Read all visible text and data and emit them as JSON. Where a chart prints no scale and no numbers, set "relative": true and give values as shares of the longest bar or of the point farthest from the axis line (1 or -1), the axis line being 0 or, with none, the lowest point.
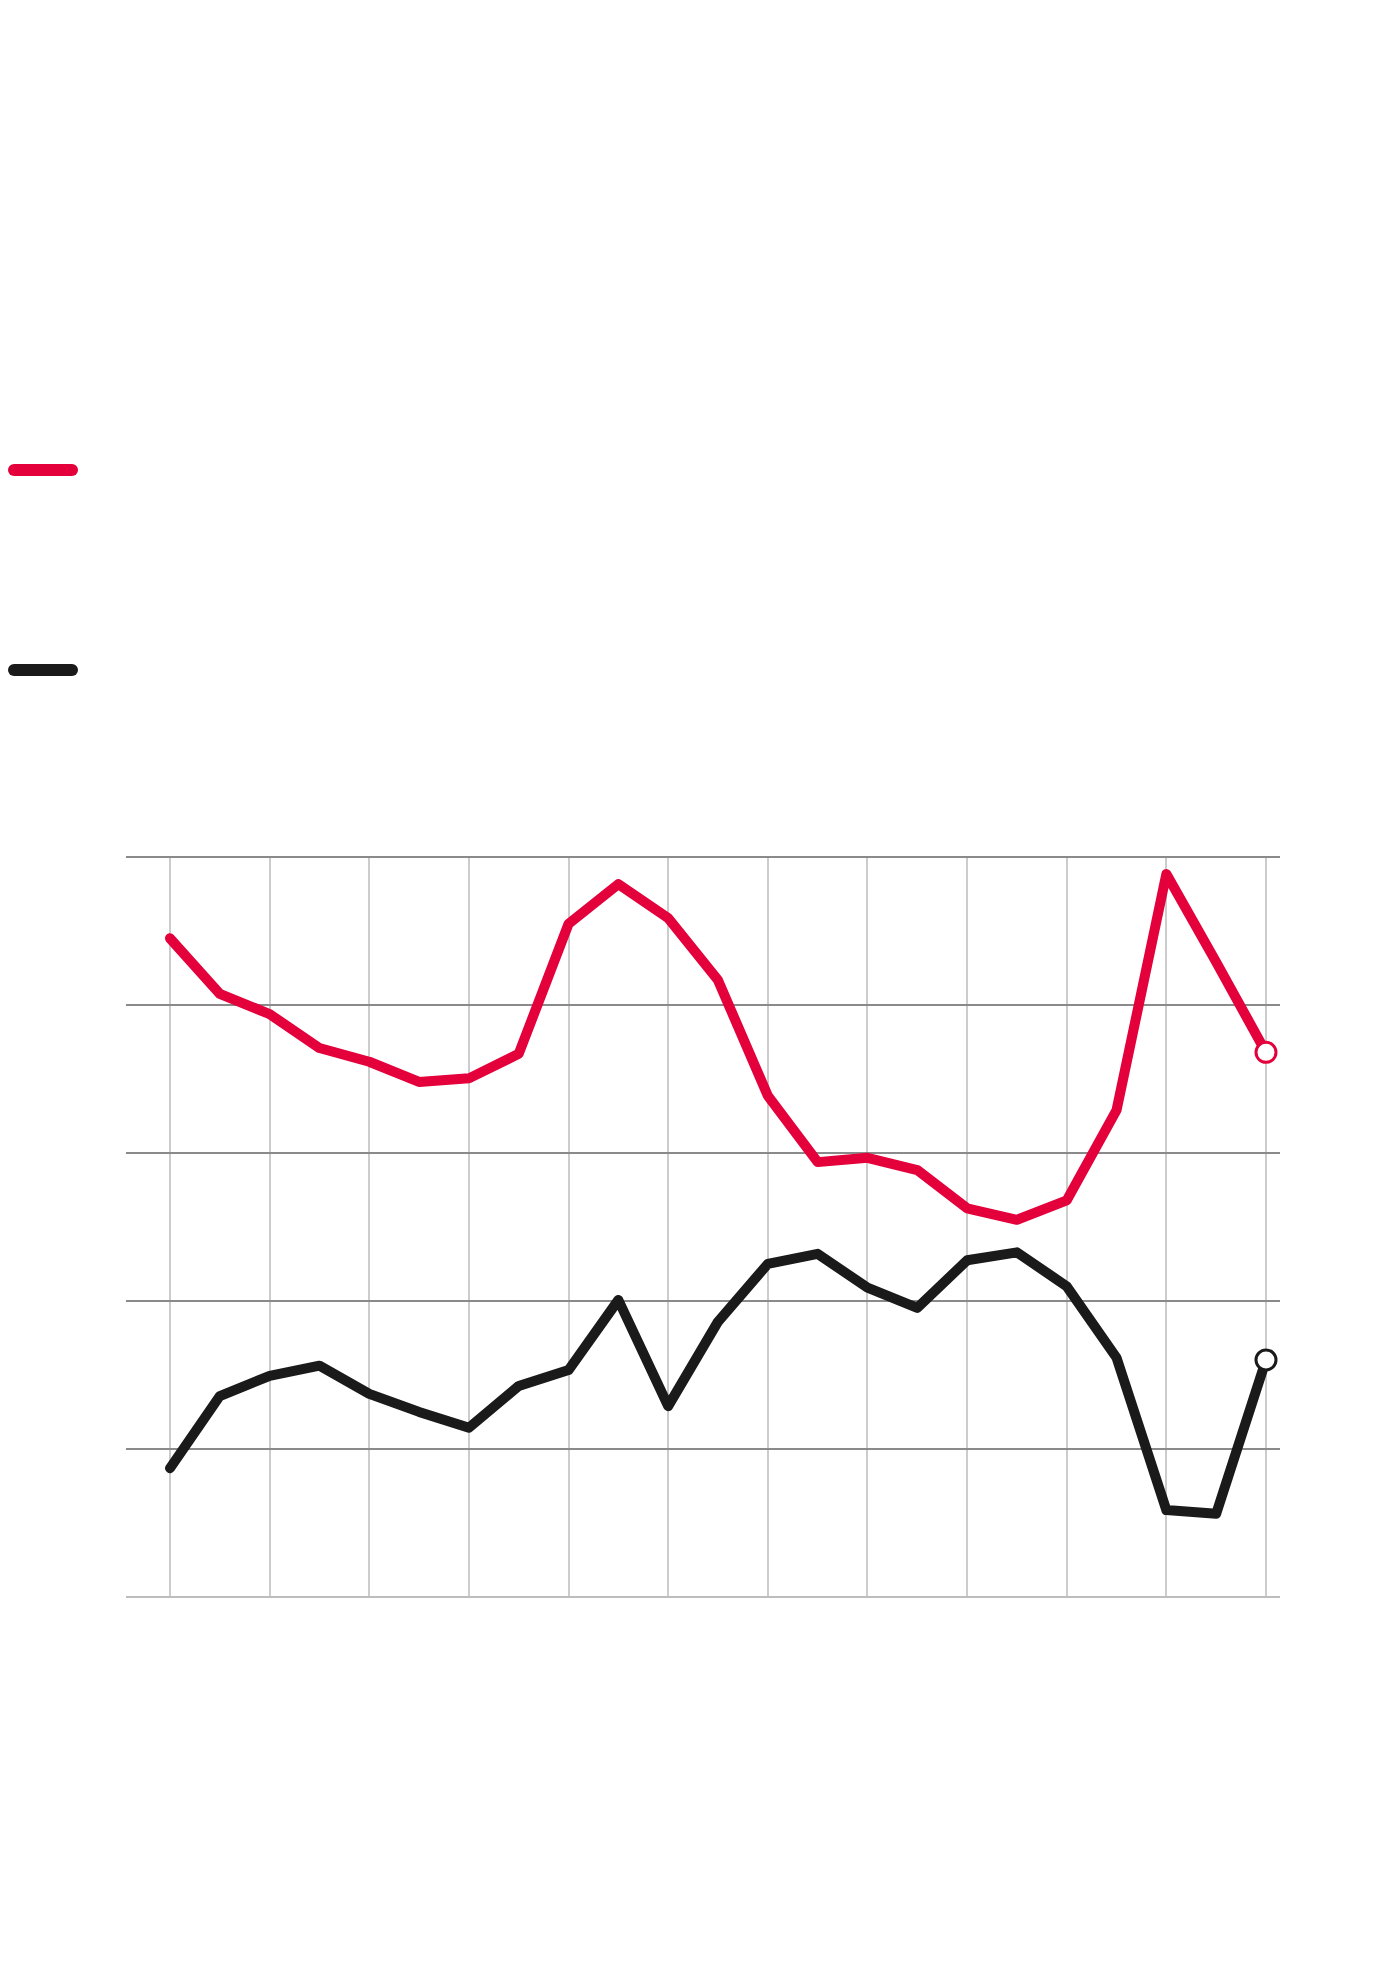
{
  "chart_data": {
    "type": "line",
    "relative": true,
    "grid": true,
    "categories": [
      null,
      null,
      null,
      null,
      null,
      null,
      null,
      null,
      null,
      null,
      null,
      null,
      null,
      null,
      null,
      null,
      null,
      null,
      null,
      null,
      null,
      null,
      null
    ],
    "series": [
      {
        "color": "#e4003b",
        "values": [
          0.911,
          0.834,
          0.806,
          0.759,
          0.74,
          0.712,
          0.717,
          0.751,
          0.931,
          0.986,
          0.939,
          0.853,
          0.693,
          0.601,
          0.607,
          0.59,
          0.537,
          0.521,
          0.548,
          0.673,
          1,
          0.878,
          0.753
        ]
      },
      {
        "color": "#1a1a1a",
        "values": [
          0.177,
          0.277,
          0.305,
          0.319,
          0.28,
          0.255,
          0.233,
          0.291,
          0.313,
          0.41,
          0.263,
          0.38,
          0.46,
          0.474,
          0.427,
          0.399,
          0.465,
          0.476,
          0.429,
          0.33,
          0.119,
          0.114,
          0.327
        ]
      }
    ]
  }
}
